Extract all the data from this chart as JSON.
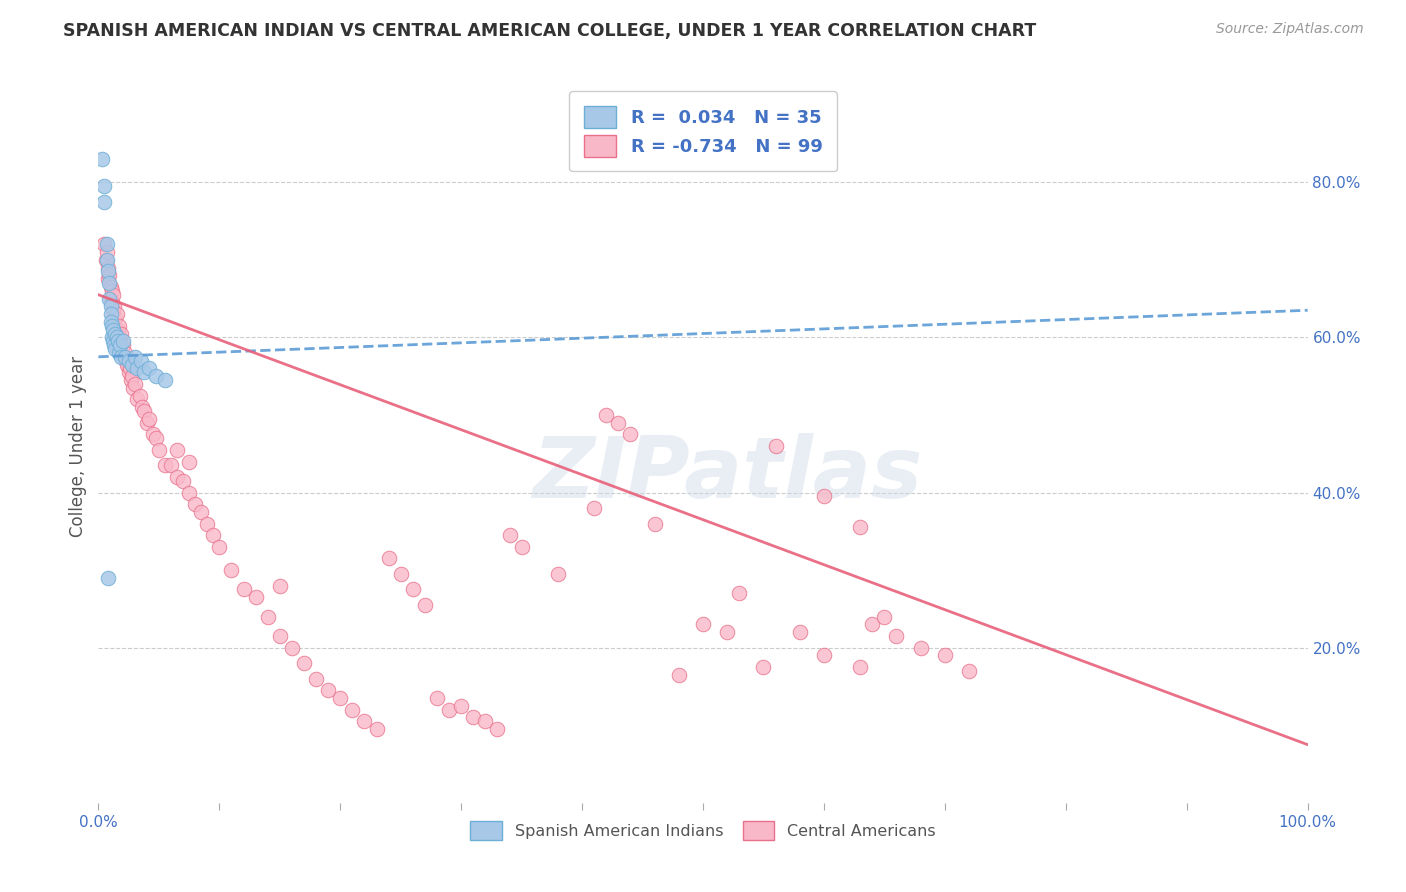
{
  "title": "SPANISH AMERICAN INDIAN VS CENTRAL AMERICAN COLLEGE, UNDER 1 YEAR CORRELATION CHART",
  "source": "Source: ZipAtlas.com",
  "ylabel": "College, Under 1 year",
  "xlim": [
    0.0,
    1.0
  ],
  "ylim": [
    0.0,
    0.92
  ],
  "xticks": [
    0.0,
    0.1,
    0.2,
    0.3,
    0.4,
    0.5,
    0.6,
    0.7,
    0.8,
    0.9,
    1.0
  ],
  "xtick_labels_show": {
    "0.0": "0.0%",
    "1.0": "100.0%"
  },
  "yticks_right": [
    0.2,
    0.4,
    0.6,
    0.8
  ],
  "ytick_labels_right": [
    "20.0%",
    "40.0%",
    "60.0%",
    "80.0%"
  ],
  "blue_scatter_color": "#a8c8e8",
  "blue_edge_color": "#6baed6",
  "pink_scatter_color": "#f9b8c8",
  "pink_edge_color": "#e8708a",
  "blue_line_color": "#5b9bd5",
  "pink_line_color": "#e8607a",
  "R_blue": 0.034,
  "N_blue": 35,
  "R_pink": -0.734,
  "N_pink": 99,
  "grid_color": "#cccccc",
  "background_color": "#ffffff",
  "axis_label_color": "#4472c4",
  "text_color": "#555555",
  "title_color": "#333333",
  "blue_line_x0": 0.0,
  "blue_line_x1": 1.0,
  "blue_line_y0": 0.575,
  "blue_line_y1": 0.635,
  "pink_line_x0": 0.0,
  "pink_line_x1": 1.0,
  "pink_line_y0": 0.655,
  "pink_line_y1": 0.075,
  "blue_scatter_x": [
    0.003,
    0.005,
    0.005,
    0.007,
    0.007,
    0.008,
    0.009,
    0.009,
    0.01,
    0.01,
    0.01,
    0.011,
    0.011,
    0.012,
    0.012,
    0.013,
    0.014,
    0.014,
    0.015,
    0.016,
    0.017,
    0.018,
    0.019,
    0.02,
    0.022,
    0.025,
    0.028,
    0.03,
    0.032,
    0.035,
    0.038,
    0.042,
    0.048,
    0.055,
    0.008
  ],
  "blue_scatter_y": [
    0.83,
    0.795,
    0.775,
    0.72,
    0.7,
    0.685,
    0.67,
    0.65,
    0.64,
    0.63,
    0.62,
    0.615,
    0.6,
    0.61,
    0.595,
    0.59,
    0.605,
    0.585,
    0.6,
    0.595,
    0.58,
    0.59,
    0.575,
    0.595,
    0.575,
    0.57,
    0.565,
    0.575,
    0.56,
    0.57,
    0.555,
    0.56,
    0.55,
    0.545,
    0.29
  ],
  "pink_scatter_x": [
    0.005,
    0.006,
    0.007,
    0.008,
    0.008,
    0.009,
    0.01,
    0.01,
    0.011,
    0.011,
    0.012,
    0.012,
    0.013,
    0.014,
    0.015,
    0.016,
    0.017,
    0.018,
    0.019,
    0.02,
    0.022,
    0.023,
    0.024,
    0.025,
    0.026,
    0.027,
    0.028,
    0.029,
    0.03,
    0.032,
    0.034,
    0.036,
    0.038,
    0.04,
    0.042,
    0.045,
    0.048,
    0.05,
    0.055,
    0.06,
    0.065,
    0.07,
    0.075,
    0.08,
    0.085,
    0.09,
    0.095,
    0.1,
    0.11,
    0.12,
    0.13,
    0.14,
    0.15,
    0.16,
    0.17,
    0.18,
    0.19,
    0.2,
    0.21,
    0.22,
    0.23,
    0.24,
    0.25,
    0.26,
    0.27,
    0.28,
    0.29,
    0.3,
    0.31,
    0.32,
    0.33,
    0.34,
    0.35,
    0.38,
    0.42,
    0.43,
    0.44,
    0.48,
    0.5,
    0.52,
    0.55,
    0.56,
    0.6,
    0.63,
    0.64,
    0.65,
    0.66,
    0.68,
    0.7,
    0.72,
    0.41,
    0.46,
    0.53,
    0.58,
    0.6,
    0.63,
    0.065,
    0.075,
    0.15
  ],
  "pink_scatter_y": [
    0.72,
    0.7,
    0.71,
    0.69,
    0.675,
    0.68,
    0.665,
    0.65,
    0.66,
    0.645,
    0.655,
    0.635,
    0.64,
    0.625,
    0.63,
    0.61,
    0.615,
    0.6,
    0.605,
    0.59,
    0.58,
    0.57,
    0.565,
    0.555,
    0.56,
    0.545,
    0.55,
    0.535,
    0.54,
    0.52,
    0.525,
    0.51,
    0.505,
    0.49,
    0.495,
    0.475,
    0.47,
    0.455,
    0.435,
    0.435,
    0.42,
    0.415,
    0.4,
    0.385,
    0.375,
    0.36,
    0.345,
    0.33,
    0.3,
    0.275,
    0.265,
    0.24,
    0.215,
    0.2,
    0.18,
    0.16,
    0.145,
    0.135,
    0.12,
    0.105,
    0.095,
    0.315,
    0.295,
    0.275,
    0.255,
    0.135,
    0.12,
    0.125,
    0.11,
    0.105,
    0.095,
    0.345,
    0.33,
    0.295,
    0.5,
    0.49,
    0.475,
    0.165,
    0.23,
    0.22,
    0.175,
    0.46,
    0.395,
    0.355,
    0.23,
    0.24,
    0.215,
    0.2,
    0.19,
    0.17,
    0.38,
    0.36,
    0.27,
    0.22,
    0.19,
    0.175,
    0.455,
    0.44,
    0.28
  ]
}
